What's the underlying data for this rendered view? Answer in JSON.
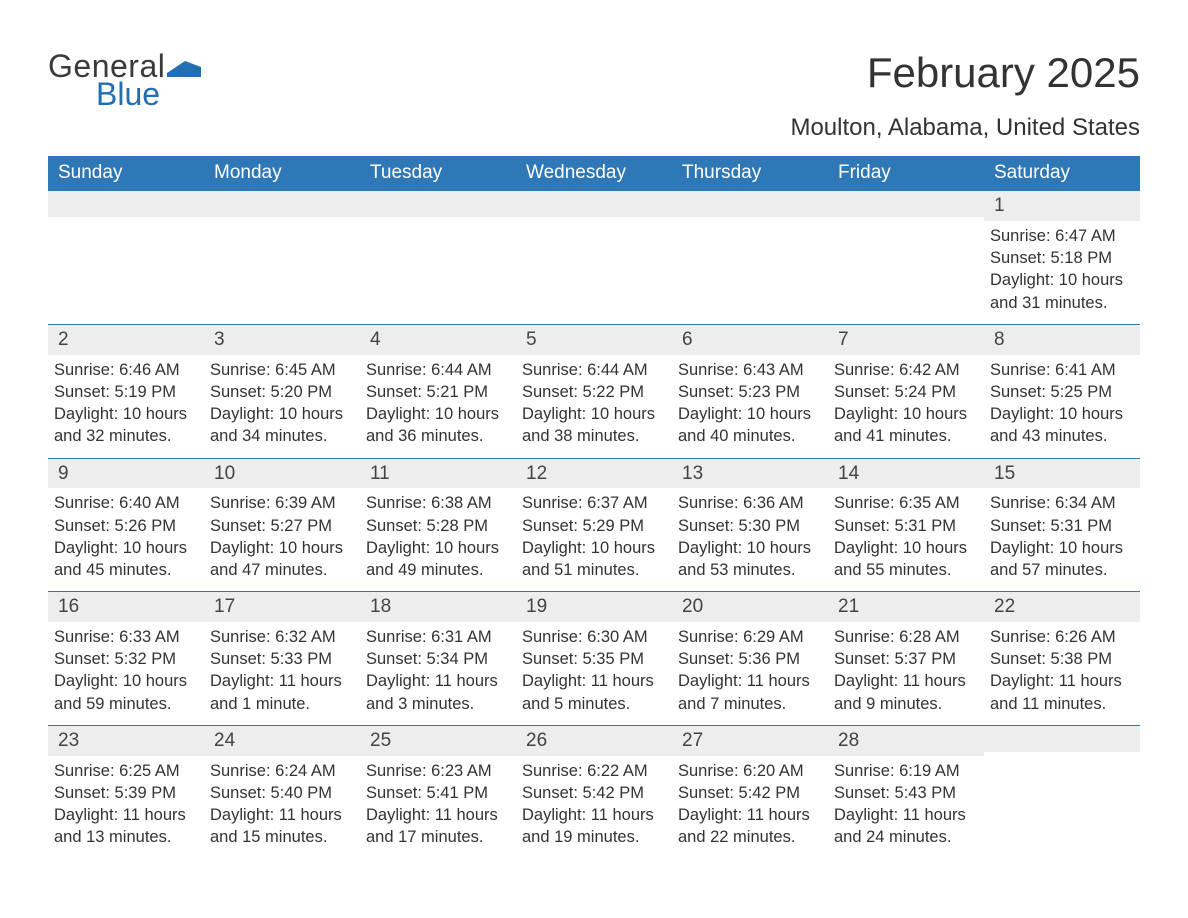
{
  "brand": {
    "part1": "General",
    "part2": "Blue"
  },
  "title": "February 2025",
  "location": "Moulton, Alabama, United States",
  "colors": {
    "header_bg": "#2f78b7",
    "header_text": "#ffffff",
    "daynum_bg": "#ededed",
    "row_divider": "#2f78b7",
    "text": "#333333",
    "brand_blue": "#1f6fb2"
  },
  "daysOfWeek": [
    "Sunday",
    "Monday",
    "Tuesday",
    "Wednesday",
    "Thursday",
    "Friday",
    "Saturday"
  ],
  "weeks": [
    [
      {
        "n": "",
        "sunrise": "",
        "sunset": "",
        "daylight": ""
      },
      {
        "n": "",
        "sunrise": "",
        "sunset": "",
        "daylight": ""
      },
      {
        "n": "",
        "sunrise": "",
        "sunset": "",
        "daylight": ""
      },
      {
        "n": "",
        "sunrise": "",
        "sunset": "",
        "daylight": ""
      },
      {
        "n": "",
        "sunrise": "",
        "sunset": "",
        "daylight": ""
      },
      {
        "n": "",
        "sunrise": "",
        "sunset": "",
        "daylight": ""
      },
      {
        "n": "1",
        "sunrise": "Sunrise: 6:47 AM",
        "sunset": "Sunset: 5:18 PM",
        "daylight": "Daylight: 10 hours and 31 minutes."
      }
    ],
    [
      {
        "n": "2",
        "sunrise": "Sunrise: 6:46 AM",
        "sunset": "Sunset: 5:19 PM",
        "daylight": "Daylight: 10 hours and 32 minutes."
      },
      {
        "n": "3",
        "sunrise": "Sunrise: 6:45 AM",
        "sunset": "Sunset: 5:20 PM",
        "daylight": "Daylight: 10 hours and 34 minutes."
      },
      {
        "n": "4",
        "sunrise": "Sunrise: 6:44 AM",
        "sunset": "Sunset: 5:21 PM",
        "daylight": "Daylight: 10 hours and 36 minutes."
      },
      {
        "n": "5",
        "sunrise": "Sunrise: 6:44 AM",
        "sunset": "Sunset: 5:22 PM",
        "daylight": "Daylight: 10 hours and 38 minutes."
      },
      {
        "n": "6",
        "sunrise": "Sunrise: 6:43 AM",
        "sunset": "Sunset: 5:23 PM",
        "daylight": "Daylight: 10 hours and 40 minutes."
      },
      {
        "n": "7",
        "sunrise": "Sunrise: 6:42 AM",
        "sunset": "Sunset: 5:24 PM",
        "daylight": "Daylight: 10 hours and 41 minutes."
      },
      {
        "n": "8",
        "sunrise": "Sunrise: 6:41 AM",
        "sunset": "Sunset: 5:25 PM",
        "daylight": "Daylight: 10 hours and 43 minutes."
      }
    ],
    [
      {
        "n": "9",
        "sunrise": "Sunrise: 6:40 AM",
        "sunset": "Sunset: 5:26 PM",
        "daylight": "Daylight: 10 hours and 45 minutes."
      },
      {
        "n": "10",
        "sunrise": "Sunrise: 6:39 AM",
        "sunset": "Sunset: 5:27 PM",
        "daylight": "Daylight: 10 hours and 47 minutes."
      },
      {
        "n": "11",
        "sunrise": "Sunrise: 6:38 AM",
        "sunset": "Sunset: 5:28 PM",
        "daylight": "Daylight: 10 hours and 49 minutes."
      },
      {
        "n": "12",
        "sunrise": "Sunrise: 6:37 AM",
        "sunset": "Sunset: 5:29 PM",
        "daylight": "Daylight: 10 hours and 51 minutes."
      },
      {
        "n": "13",
        "sunrise": "Sunrise: 6:36 AM",
        "sunset": "Sunset: 5:30 PM",
        "daylight": "Daylight: 10 hours and 53 minutes."
      },
      {
        "n": "14",
        "sunrise": "Sunrise: 6:35 AM",
        "sunset": "Sunset: 5:31 PM",
        "daylight": "Daylight: 10 hours and 55 minutes."
      },
      {
        "n": "15",
        "sunrise": "Sunrise: 6:34 AM",
        "sunset": "Sunset: 5:31 PM",
        "daylight": "Daylight: 10 hours and 57 minutes."
      }
    ],
    [
      {
        "n": "16",
        "sunrise": "Sunrise: 6:33 AM",
        "sunset": "Sunset: 5:32 PM",
        "daylight": "Daylight: 10 hours and 59 minutes."
      },
      {
        "n": "17",
        "sunrise": "Sunrise: 6:32 AM",
        "sunset": "Sunset: 5:33 PM",
        "daylight": "Daylight: 11 hours and 1 minute."
      },
      {
        "n": "18",
        "sunrise": "Sunrise: 6:31 AM",
        "sunset": "Sunset: 5:34 PM",
        "daylight": "Daylight: 11 hours and 3 minutes."
      },
      {
        "n": "19",
        "sunrise": "Sunrise: 6:30 AM",
        "sunset": "Sunset: 5:35 PM",
        "daylight": "Daylight: 11 hours and 5 minutes."
      },
      {
        "n": "20",
        "sunrise": "Sunrise: 6:29 AM",
        "sunset": "Sunset: 5:36 PM",
        "daylight": "Daylight: 11 hours and 7 minutes."
      },
      {
        "n": "21",
        "sunrise": "Sunrise: 6:28 AM",
        "sunset": "Sunset: 5:37 PM",
        "daylight": "Daylight: 11 hours and 9 minutes."
      },
      {
        "n": "22",
        "sunrise": "Sunrise: 6:26 AM",
        "sunset": "Sunset: 5:38 PM",
        "daylight": "Daylight: 11 hours and 11 minutes."
      }
    ],
    [
      {
        "n": "23",
        "sunrise": "Sunrise: 6:25 AM",
        "sunset": "Sunset: 5:39 PM",
        "daylight": "Daylight: 11 hours and 13 minutes."
      },
      {
        "n": "24",
        "sunrise": "Sunrise: 6:24 AM",
        "sunset": "Sunset: 5:40 PM",
        "daylight": "Daylight: 11 hours and 15 minutes."
      },
      {
        "n": "25",
        "sunrise": "Sunrise: 6:23 AM",
        "sunset": "Sunset: 5:41 PM",
        "daylight": "Daylight: 11 hours and 17 minutes."
      },
      {
        "n": "26",
        "sunrise": "Sunrise: 6:22 AM",
        "sunset": "Sunset: 5:42 PM",
        "daylight": "Daylight: 11 hours and 19 minutes."
      },
      {
        "n": "27",
        "sunrise": "Sunrise: 6:20 AM",
        "sunset": "Sunset: 5:42 PM",
        "daylight": "Daylight: 11 hours and 22 minutes."
      },
      {
        "n": "28",
        "sunrise": "Sunrise: 6:19 AM",
        "sunset": "Sunset: 5:43 PM",
        "daylight": "Daylight: 11 hours and 24 minutes."
      },
      {
        "n": "",
        "sunrise": "",
        "sunset": "",
        "daylight": ""
      }
    ]
  ]
}
